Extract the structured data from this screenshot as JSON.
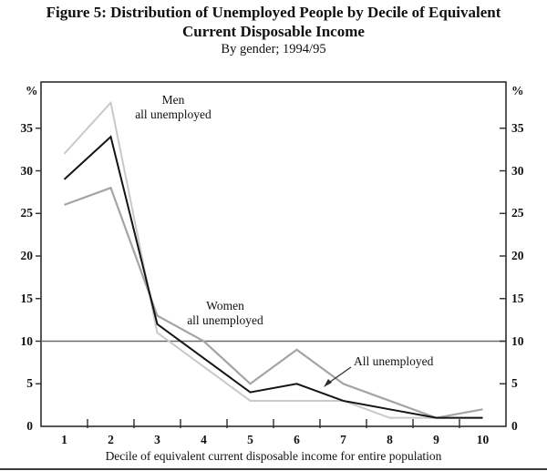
{
  "figure": {
    "title_line1": "Figure 5: Distribution of Unemployed People by Decile of Equivalent",
    "title_line2": "Current Disposable Income",
    "subtitle": "By gender; 1994/95"
  },
  "chart_data": {
    "type": "line",
    "categories": [
      1,
      2,
      3,
      4,
      5,
      6,
      7,
      8,
      9,
      10
    ],
    "series": [
      {
        "name": "Men all unemployed",
        "color": "#c9c9c9",
        "stroke_width": 2,
        "values": [
          32,
          38,
          11,
          7,
          3,
          3,
          3,
          1,
          1,
          1
        ]
      },
      {
        "name": "Women all unemployed",
        "color": "#a4a4a4",
        "stroke_width": 2.2,
        "values": [
          26,
          28,
          13,
          10,
          5,
          9,
          5,
          3,
          1,
          2
        ]
      },
      {
        "name": "All unemployed",
        "color": "#141414",
        "stroke_width": 2,
        "values": [
          29,
          34,
          12,
          8,
          4,
          5,
          3,
          2,
          1,
          1
        ]
      }
    ],
    "title": "Figure 5: Distribution of Unemployed People by Decile of Equivalent Current Disposable Income",
    "subtitle": "By gender; 1994/95",
    "xlabel": "Decile of equivalent current disposable income for entire population",
    "ylabel_left": "%",
    "ylabel_right": "%",
    "y_ticks": [
      0,
      5,
      10,
      15,
      20,
      25,
      30,
      35
    ],
    "ylim": [
      0,
      40.4
    ],
    "reference_line_y": 10,
    "grid": "off",
    "legend_position": "inline annotations on plot",
    "frame_color": "#2d2d2d",
    "reference_line_color": "#6b6b6b"
  },
  "annotations": {
    "men_label_line1": "Men",
    "men_label_line2": "all unemployed",
    "women_label_line1": "Women",
    "women_label_line2": "all unemployed",
    "all_label": "All unemployed"
  }
}
